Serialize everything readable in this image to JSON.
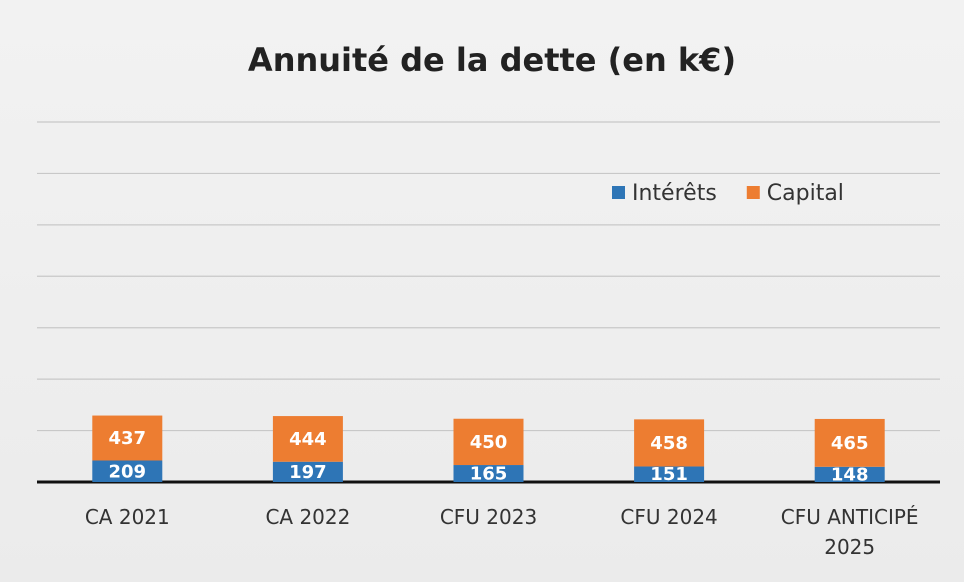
{
  "chart_data": {
    "type": "stacked_bar",
    "title": "Annuité de la dette (en k€)",
    "categories": [
      "CA 2021",
      "CA 2022",
      "CFU 2023",
      "CFU 2024",
      "CFU ANTICIPÉ 2025"
    ],
    "series": [
      {
        "name": "Intérêts",
        "color": "#2e75b6",
        "values": [
          209,
          197,
          165,
          151,
          148
        ]
      },
      {
        "name": "Capital",
        "color": "#ed7d31",
        "values": [
          437,
          444,
          450,
          458,
          465
        ]
      }
    ],
    "ylim": [
      0,
      3500
    ],
    "yticks": [
      0,
      500,
      1000,
      1500,
      2000,
      2500,
      3000,
      3500
    ],
    "grid": true,
    "legend": "top-right"
  }
}
